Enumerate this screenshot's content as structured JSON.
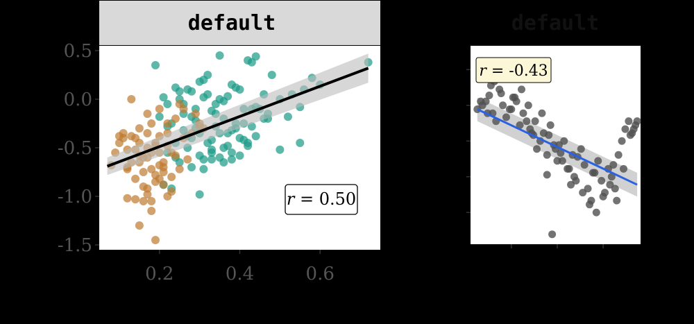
{
  "colors": {
    "background": "#000000",
    "panel": "#ffffff",
    "strip": "#d9d9d9",
    "group_a": "#1a9a86",
    "group_b": "#bf7a30",
    "fit_left": "#000000",
    "ribbon": "#bdbdbd",
    "points_right": "#505050",
    "fit_right": "#2b62e3",
    "label_fill_right": "#fcf7d7",
    "tick_text": "#555555"
  },
  "chart_data": [
    {
      "type": "scatter",
      "title": "default",
      "xlabel": "",
      "ylabel": "",
      "xlim": [
        0.05,
        0.75
      ],
      "ylim": [
        -1.55,
        0.55
      ],
      "x_ticks": [
        "0.2",
        "0.4",
        "0.6"
      ],
      "y_ticks": [
        "0.5",
        "0.0",
        "-0.5",
        "-1.0",
        "-1.5"
      ],
      "x_tick_values": [
        0.2,
        0.4,
        0.6
      ],
      "y_tick_values": [
        0.5,
        0.0,
        -0.5,
        -1.0,
        -1.5
      ],
      "grid": false,
      "legend": "none",
      "annotation": {
        "prefix": "r",
        "text": " = 0.50",
        "position": "bottom-right"
      },
      "fit": {
        "type": "linear",
        "x": [
          0.07,
          0.72
        ],
        "y": [
          -0.69,
          0.32
        ],
        "ci_low": [
          -0.78,
          0.17
        ],
        "ci_high": [
          -0.6,
          0.47
        ]
      },
      "series": [
        {
          "x": [
            0.19,
            0.21,
            0.24,
            0.27,
            0.3,
            0.32,
            0.35,
            0.38,
            0.42,
            0.44,
            0.48,
            0.53,
            0.56,
            0.58,
            0.6,
            0.22,
            0.25,
            0.28,
            0.31,
            0.34,
            0.37,
            0.4,
            0.43,
            0.46,
            0.5,
            0.55,
            0.2,
            0.23,
            0.26,
            0.29,
            0.33,
            0.36,
            0.39,
            0.41,
            0.45,
            0.47,
            0.52,
            0.24,
            0.27,
            0.3,
            0.33,
            0.36,
            0.4,
            0.42,
            0.38,
            0.35,
            0.31,
            0.28,
            0.25,
            0.22,
            0.3,
            0.33,
            0.37,
            0.41,
            0.44,
            0.34,
            0.29,
            0.26,
            0.39,
            0.32,
            0.23,
            0.36,
            0.43,
            0.27,
            0.31,
            0.35,
            0.21,
            0.24,
            0.38,
            0.28,
            0.42,
            0.33,
            0.46,
            0.3,
            0.37,
            0.4,
            0.32,
            0.35,
            0.29,
            0.39,
            0.25,
            0.34,
            0.72,
            0.43,
            0.22,
            0.28,
            0.31,
            0.26,
            0.36,
            0.41,
            0.33,
            0.47,
            0.5,
            0.55,
            0.44,
            0.38
          ],
          "y": [
            0.35,
            0.02,
            0.12,
            0.1,
            0.18,
            0.25,
            0.45,
            0.15,
            0.4,
            0.44,
            0.25,
            0.05,
            0.1,
            0.22,
            0.15,
            -0.05,
            0.0,
            0.08,
            0.02,
            -0.05,
            0.03,
            0.1,
            -0.1,
            0.05,
            0.0,
            -0.08,
            -0.18,
            -0.25,
            -0.15,
            -0.22,
            -0.12,
            -0.2,
            -0.3,
            -0.25,
            -0.1,
            -0.2,
            -0.18,
            -0.45,
            -0.38,
            -0.35,
            -0.42,
            -0.5,
            -0.4,
            -0.45,
            -0.55,
            -0.6,
            -0.62,
            -0.7,
            -0.65,
            -0.55,
            -0.58,
            -0.52,
            -0.48,
            -0.42,
            -0.38,
            -0.28,
            -0.3,
            -0.32,
            -0.25,
            -0.45,
            -0.92,
            -0.65,
            -0.28,
            -0.5,
            -0.72,
            -0.35,
            -0.88,
            -0.6,
            -0.62,
            -0.4,
            -0.48,
            -0.62,
            -0.2,
            -0.98,
            -0.35,
            -0.58,
            0.05,
            0.0,
            -0.1,
            0.12,
            0.08,
            -0.15,
            0.38,
            0.38,
            -0.28,
            -0.18,
            0.2,
            -0.05,
            -0.02,
            -0.1,
            -0.55,
            -0.15,
            -0.52,
            -0.45,
            -0.08,
            -0.32
          ],
          "color": "#1a9a86"
        },
        {
          "x": [
            0.08,
            0.1,
            0.12,
            0.14,
            0.15,
            0.17,
            0.18,
            0.2,
            0.21,
            0.22,
            0.24,
            0.26,
            0.28,
            0.3,
            0.11,
            0.13,
            0.16,
            0.19,
            0.23,
            0.25,
            0.27,
            0.09,
            0.12,
            0.14,
            0.17,
            0.2,
            0.22,
            0.18,
            0.16,
            0.13,
            0.15,
            0.19,
            0.21,
            0.17,
            0.14,
            0.12,
            0.2,
            0.23,
            0.18,
            0.16,
            0.15,
            0.19,
            0.21,
            0.17,
            0.22,
            0.26,
            0.29,
            0.31,
            0.25,
            0.24,
            0.18,
            0.2,
            0.13,
            0.11,
            0.1,
            0.15,
            0.17,
            0.19,
            0.14,
            0.16,
            0.12,
            0.18,
            0.2,
            0.17,
            0.15,
            0.21,
            0.19,
            0.23,
            0.22,
            0.3
          ],
          "y": [
            -0.68,
            -0.45,
            -0.52,
            -0.4,
            -0.3,
            -0.6,
            -0.72,
            -0.55,
            -0.65,
            -0.48,
            -0.58,
            -0.4,
            -0.35,
            -0.25,
            -0.35,
            -0.38,
            -0.75,
            -0.85,
            -0.95,
            -0.72,
            -0.62,
            -0.55,
            -1.02,
            -1.03,
            -0.92,
            -0.82,
            -1.0,
            -1.05,
            -0.9,
            -0.65,
            -0.58,
            -0.78,
            -0.88,
            -0.98,
            -0.82,
            -0.7,
            -0.68,
            -0.8,
            -1.15,
            -1.05,
            -1.3,
            -1.45,
            -0.75,
            -0.5,
            -0.35,
            -0.1,
            -0.15,
            -0.3,
            -0.05,
            -0.2,
            -0.25,
            -0.1,
            0.0,
            -0.4,
            -0.38,
            -0.45,
            -0.35,
            -0.45,
            -0.52,
            -0.6,
            -0.72,
            -0.55,
            -0.38,
            -0.15,
            -0.65,
            -0.7,
            -0.48,
            -0.55,
            -0.25,
            -0.28
          ],
          "color": "#bf7a30"
        }
      ]
    },
    {
      "type": "scatter",
      "title": "default",
      "xlabel": "",
      "ylabel": "",
      "xlim": [
        0.0,
        1.0
      ],
      "ylim": [
        0.0,
        1.0
      ],
      "x_ticks": [
        "",
        "",
        ""
      ],
      "y_ticks": [
        "",
        "",
        "",
        "",
        ""
      ],
      "grid": false,
      "legend": "none",
      "annotation": {
        "prefix": "r",
        "text": " = -0.43",
        "position": "top-left"
      },
      "fit": {
        "type": "linear",
        "x": [
          0.04,
          0.98
        ],
        "y": [
          0.68,
          0.3
        ],
        "ci_low": [
          0.62,
          0.24
        ],
        "ci_high": [
          0.74,
          0.36
        ]
      },
      "series": [
        {
          "x": [
            0.04,
            0.07,
            0.09,
            0.11,
            0.13,
            0.15,
            0.17,
            0.19,
            0.21,
            0.23,
            0.25,
            0.27,
            0.29,
            0.31,
            0.33,
            0.35,
            0.37,
            0.39,
            0.41,
            0.43,
            0.45,
            0.47,
            0.49,
            0.51,
            0.53,
            0.55,
            0.57,
            0.59,
            0.61,
            0.63,
            0.65,
            0.67,
            0.69,
            0.71,
            0.73,
            0.75,
            0.77,
            0.79,
            0.81,
            0.83,
            0.85,
            0.87,
            0.89,
            0.91,
            0.93,
            0.95,
            0.97,
            0.98,
            0.06,
            0.1,
            0.14,
            0.18,
            0.22,
            0.26,
            0.3,
            0.34,
            0.38,
            0.42,
            0.46,
            0.5,
            0.54,
            0.58,
            0.62,
            0.66,
            0.7,
            0.74,
            0.78,
            0.82,
            0.86,
            0.9,
            0.94,
            0.12,
            0.24,
            0.36,
            0.48,
            0.6,
            0.72,
            0.84,
            0.96,
            0.45,
            0.52
          ],
          "y": [
            0.68,
            0.7,
            0.72,
            0.75,
            0.66,
            0.62,
            0.78,
            0.7,
            0.64,
            0.68,
            0.74,
            0.72,
            0.6,
            0.66,
            0.62,
            0.58,
            0.55,
            0.48,
            0.52,
            0.56,
            0.45,
            0.6,
            0.5,
            0.42,
            0.46,
            0.52,
            0.38,
            0.3,
            0.34,
            0.44,
            0.48,
            0.4,
            0.28,
            0.22,
            0.36,
            0.42,
            0.32,
            0.26,
            0.38,
            0.34,
            0.28,
            0.45,
            0.52,
            0.58,
            0.62,
            0.56,
            0.6,
            0.62,
            0.72,
            0.66,
            0.82,
            0.76,
            0.86,
            0.74,
            0.78,
            0.7,
            0.62,
            0.66,
            0.55,
            0.48,
            0.42,
            0.38,
            0.32,
            0.26,
            0.2,
            0.16,
            0.24,
            0.3,
            0.22,
            0.38,
            0.55,
            0.8,
            0.68,
            0.56,
            0.05,
            0.45,
            0.36,
            0.4,
            0.58,
            0.35,
            0.5
          ],
          "color": "#505050"
        }
      ]
    }
  ]
}
